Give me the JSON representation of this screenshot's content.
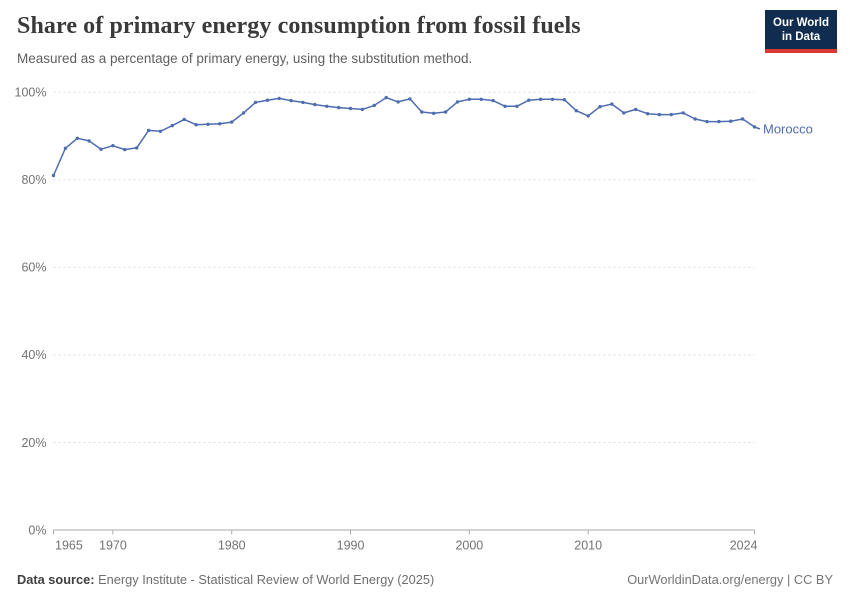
{
  "header": {
    "title": "Share of primary energy consumption from fossil fuels",
    "subtitle": "Measured as a percentage of primary energy, using the substitution method.",
    "logo": {
      "line1": "Our World",
      "line2": "in Data"
    }
  },
  "colors": {
    "logo_navy": "#102d50",
    "logo_red": "#d93a34",
    "line_blue": "#4e6cb0",
    "gridline": "#dcdcdc",
    "axis": "#a8a8a8",
    "tick_text": "#737373"
  },
  "chart_data": {
    "type": "line",
    "title": "Share of primary energy consumption from fossil fuels",
    "subtitle": "Measured as a percentage of primary energy, using the substitution method.",
    "xlabel": "",
    "ylabel": "",
    "xlim": [
      1965,
      2024
    ],
    "ylim": [
      0,
      100
    ],
    "grid": "horizontal-dashed",
    "legend": "end-of-line-label",
    "yticks": [
      {
        "value": 0,
        "label": "0%"
      },
      {
        "value": 20,
        "label": "20%"
      },
      {
        "value": 40,
        "label": "40%"
      },
      {
        "value": 60,
        "label": "60%"
      },
      {
        "value": 80,
        "label": "80%"
      },
      {
        "value": 100,
        "label": "100%"
      }
    ],
    "xticks": [
      {
        "value": 1965,
        "label": "1965"
      },
      {
        "value": 1970,
        "label": "1970"
      },
      {
        "value": 1980,
        "label": "1980"
      },
      {
        "value": 1990,
        "label": "1990"
      },
      {
        "value": 2000,
        "label": "2000"
      },
      {
        "value": 2010,
        "label": "2010"
      },
      {
        "value": 2024,
        "label": "2024"
      }
    ],
    "series": [
      {
        "name": "Morocco",
        "color": "#4e6cb0",
        "unit": "%",
        "years": [
          1965,
          1966,
          1967,
          1968,
          1969,
          1970,
          1971,
          1972,
          1973,
          1974,
          1975,
          1976,
          1977,
          1978,
          1979,
          1980,
          1981,
          1982,
          1983,
          1984,
          1985,
          1986,
          1987,
          1988,
          1989,
          1990,
          1991,
          1992,
          1993,
          1994,
          1995,
          1996,
          1997,
          1998,
          1999,
          2000,
          2001,
          2002,
          2003,
          2004,
          2005,
          2006,
          2007,
          2008,
          2009,
          2010,
          2011,
          2012,
          2013,
          2014,
          2015,
          2016,
          2017,
          2018,
          2019,
          2020,
          2021,
          2022,
          2023,
          2024
        ],
        "values": [
          81.0,
          87.2,
          89.5,
          88.9,
          87.0,
          87.8,
          86.9,
          87.3,
          91.3,
          91.1,
          92.4,
          93.8,
          92.6,
          92.7,
          92.8,
          93.2,
          95.3,
          97.7,
          98.2,
          98.6,
          98.1,
          97.7,
          97.2,
          96.8,
          96.5,
          96.3,
          96.1,
          97.0,
          98.8,
          97.8,
          98.5,
          95.5,
          95.2,
          95.5,
          97.8,
          98.4,
          98.4,
          98.1,
          96.8,
          96.8,
          98.2,
          98.4,
          98.4,
          98.3,
          95.8,
          94.6,
          96.7,
          97.3,
          95.3,
          96.1,
          95.1,
          94.9,
          94.9,
          95.3,
          93.9,
          93.3,
          93.3,
          93.4,
          93.9,
          92.1
        ]
      }
    ]
  },
  "footer": {
    "datasource_label": "Data source:",
    "datasource_text": " Energy Institute - Statistical Review of World Energy (2025)",
    "right_text": "OurWorldinData.org/energy | CC BY"
  }
}
